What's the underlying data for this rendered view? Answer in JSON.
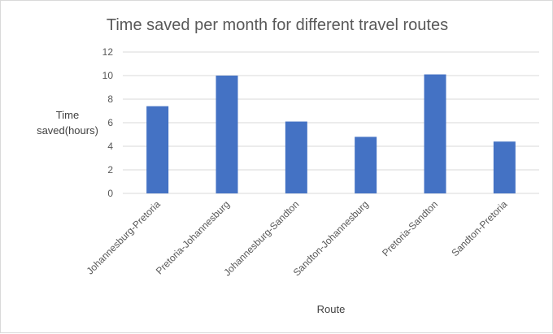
{
  "chart_data": {
    "type": "bar",
    "title": "Time saved per month for different travel routes",
    "xlabel": "Route",
    "ylabel_lines": [
      "Time",
      "saved(hours)"
    ],
    "categories": [
      "Johannesburg-Pretoria",
      "Pretoria-Johannesburg",
      "Johannesburg-Sandton",
      "Sandton-Johannesburg",
      "Pretoria-Sandton",
      "Sandton-Pretoria"
    ],
    "values": [
      7.4,
      10.0,
      6.1,
      4.8,
      10.1,
      4.4
    ],
    "ylim": [
      0,
      12
    ],
    "yticks": [
      0,
      2,
      4,
      6,
      8,
      10,
      12
    ],
    "grid": true,
    "legend": "none",
    "bar_color": "#4472c4",
    "grid_color": "#d9d9d9"
  }
}
